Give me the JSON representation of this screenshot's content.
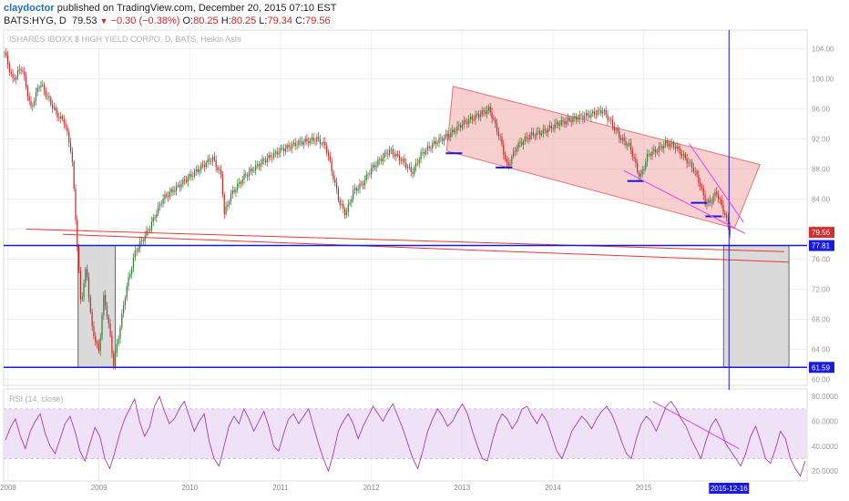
{
  "header": {
    "author": "claydoctor",
    "published": "published on TradingView.com, December 20, 2015 07:10 EST",
    "symbol": "BATS:HYG, D",
    "last": "79.53",
    "change": "−0.30 (−0.38%)",
    "open_label": "O:",
    "open": "80.25",
    "high_label": "H:",
    "high": "80.25",
    "low_label": "L:",
    "low": "79.34",
    "close_label": "C:",
    "close": "79.56"
  },
  "chart_data": [
    {
      "type": "candlestick",
      "title": "ISHARES IBOXX $ HIGH YIELD CORPO, D, BATS, Heikin Ashi",
      "price_axis": {
        "ticks": [
          "104.00",
          "100.00",
          "96.00",
          "92.00",
          "88.00",
          "84.00",
          "80.00",
          "76.00",
          "72.00",
          "68.00",
          "64.00",
          "60.00"
        ],
        "ylim": [
          59.2,
          106.5
        ]
      },
      "x_axis": {
        "labels": [
          "2008",
          "2009",
          "2010",
          "2011",
          "2012",
          "2013",
          "2014",
          "2015"
        ],
        "xlim": [
          2007.95,
          2016.8
        ]
      },
      "marker_date": "2015-12-16",
      "price_tags": {
        "last": "79.56",
        "support_high": "77.81",
        "support_low": "61.59"
      },
      "price_path": [
        [
          2007.96,
          103.5
        ],
        [
          2008.05,
          99.8
        ],
        [
          2008.15,
          101.6
        ],
        [
          2008.25,
          96.0
        ],
        [
          2008.35,
          99.5
        ],
        [
          2008.45,
          97.2
        ],
        [
          2008.55,
          95.0
        ],
        [
          2008.62,
          94.3
        ],
        [
          2008.7,
          90.0
        ],
        [
          2008.75,
          80.0
        ],
        [
          2008.8,
          70.0
        ],
        [
          2008.86,
          75.0
        ],
        [
          2008.92,
          67.0
        ],
        [
          2009.0,
          63.5
        ],
        [
          2009.05,
          71.0
        ],
        [
          2009.1,
          68.0
        ],
        [
          2009.16,
          62.0
        ],
        [
          2009.22,
          66.0
        ],
        [
          2009.3,
          72.0
        ],
        [
          2009.4,
          77.0
        ],
        [
          2009.55,
          80.0
        ],
        [
          2009.7,
          84.0
        ],
        [
          2009.85,
          85.5
        ],
        [
          2010.0,
          87.0
        ],
        [
          2010.1,
          88.0
        ],
        [
          2010.25,
          89.5
        ],
        [
          2010.35,
          87.0
        ],
        [
          2010.38,
          82.0
        ],
        [
          2010.45,
          84.5
        ],
        [
          2010.6,
          87.0
        ],
        [
          2010.8,
          89.0
        ],
        [
          2011.0,
          90.5
        ],
        [
          2011.2,
          91.5
        ],
        [
          2011.4,
          92.0
        ],
        [
          2011.5,
          91.0
        ],
        [
          2011.6,
          86.0
        ],
        [
          2011.65,
          83.5
        ],
        [
          2011.72,
          82.0
        ],
        [
          2011.8,
          85.0
        ],
        [
          2011.9,
          86.0
        ],
        [
          2012.0,
          88.0
        ],
        [
          2012.2,
          90.5
        ],
        [
          2012.35,
          89.0
        ],
        [
          2012.45,
          87.5
        ],
        [
          2012.55,
          90.0
        ],
        [
          2012.7,
          91.5
        ],
        [
          2012.85,
          92.5
        ],
        [
          2013.0,
          94.0
        ],
        [
          2013.15,
          95.0
        ],
        [
          2013.3,
          96.0
        ],
        [
          2013.42,
          92.0
        ],
        [
          2013.5,
          88.2
        ],
        [
          2013.6,
          91.0
        ],
        [
          2013.75,
          92.5
        ],
        [
          2013.9,
          93.0
        ],
        [
          2014.05,
          94.0
        ],
        [
          2014.25,
          94.8
        ],
        [
          2014.4,
          95.2
        ],
        [
          2014.55,
          95.8
        ],
        [
          2014.65,
          94.0
        ],
        [
          2014.75,
          92.0
        ],
        [
          2014.85,
          91.0
        ],
        [
          2014.92,
          88.2
        ],
        [
          2014.96,
          86.8
        ],
        [
          2015.05,
          90.0
        ],
        [
          2015.15,
          90.5
        ],
        [
          2015.25,
          91.5
        ],
        [
          2015.35,
          91.0
        ],
        [
          2015.45,
          89.5
        ],
        [
          2015.55,
          88.0
        ],
        [
          2015.62,
          86.0
        ],
        [
          2015.68,
          83.5
        ],
        [
          2015.74,
          83.6
        ],
        [
          2015.8,
          85.0
        ],
        [
          2015.86,
          83.0
        ],
        [
          2015.9,
          81.8
        ],
        [
          2015.95,
          79.6
        ]
      ],
      "rsi": {
        "label": "RSI (14, close)",
        "ticks": [
          "80.0000",
          "60.0000",
          "40.0000",
          "20.0000"
        ],
        "ylim": [
          12,
          86
        ],
        "band": [
          30,
          70
        ],
        "values": [
          45,
          55,
          62,
          48,
          38,
          52,
          60,
          66,
          50,
          40,
          34,
          46,
          58,
          64,
          52,
          36,
          28,
          42,
          55,
          48,
          30,
          22,
          35,
          50,
          62,
          70,
          78,
          60,
          48,
          55,
          72,
          80,
          68,
          58,
          62,
          70,
          76,
          64,
          52,
          60,
          66,
          44,
          30,
          24,
          40,
          56,
          64,
          58,
          70,
          62,
          52,
          60,
          68,
          56,
          40,
          36,
          50,
          62,
          66,
          58,
          64,
          70,
          56,
          42,
          30,
          20,
          34,
          52,
          60,
          66,
          58,
          46,
          56,
          64,
          72,
          66,
          60,
          68,
          74,
          64,
          54,
          42,
          30,
          22,
          36,
          52,
          62,
          70,
          64,
          56,
          60,
          68,
          74,
          66,
          52,
          40,
          30,
          28,
          44,
          58,
          66,
          62,
          54,
          60,
          70,
          72,
          64,
          58,
          66,
          60,
          48,
          36,
          30,
          40,
          52,
          58,
          64,
          60,
          54,
          62,
          68,
          72,
          66,
          56,
          44,
          34,
          30,
          46,
          58,
          64,
          60,
          52,
          62,
          72,
          76,
          70,
          62,
          56,
          46,
          38,
          30,
          44,
          56,
          62,
          54,
          42,
          36,
          30,
          24,
          34,
          48,
          56,
          44,
          30,
          26,
          38,
          52,
          46,
          30,
          22,
          16,
          28
        ]
      }
    }
  ]
}
